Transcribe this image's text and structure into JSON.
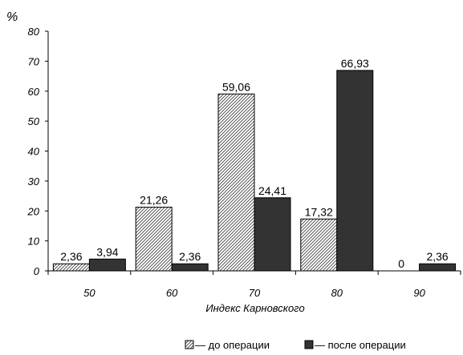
{
  "chart_data": {
    "type": "bar",
    "categories": [
      "50",
      "60",
      "70",
      "80",
      "90"
    ],
    "series": [
      {
        "name": "— до операции",
        "values": [
          2.36,
          21.26,
          59.06,
          17.32,
          0
        ],
        "labels": [
          "2,36",
          "21,26",
          "59,06",
          "17,32",
          "0"
        ],
        "color": "#ffffff",
        "pattern": "diagonal-hatch"
      },
      {
        "name": "— после операции",
        "values": [
          3.94,
          2.36,
          24.41,
          66.93,
          2.36
        ],
        "labels": [
          "3,94",
          "2,36",
          "24,41",
          "66,93",
          "2,36"
        ],
        "color": "#333333"
      }
    ],
    "y_unit": "%",
    "xlabel": "Индекс Карновского",
    "ylabel": "",
    "ylim": [
      0,
      80
    ],
    "yticks": [
      0,
      10,
      20,
      30,
      40,
      50,
      60,
      70,
      80
    ],
    "grid": false,
    "legend_position": "bottom"
  }
}
